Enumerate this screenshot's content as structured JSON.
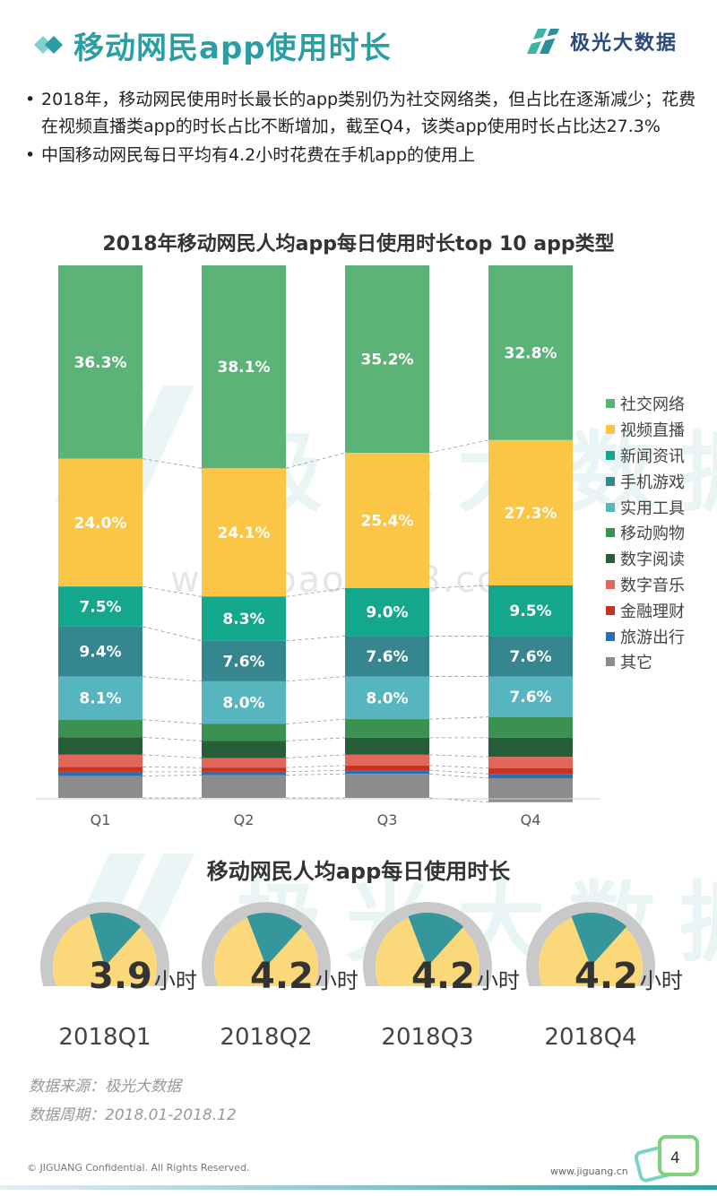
{
  "header": {
    "title": "移动网民app使用时长",
    "brand": "极光大数据"
  },
  "bullets": [
    "2018年，移动网民使用时长最长的app类别仍为社交网络类，但占比在逐渐减少；花费在视频直播类app的时长占比不断增加，截至Q4，该类app使用时长占比达27.3%",
    "中国移动网民每日平均有4.2小时花费在手机app的使用上"
  ],
  "watermark": {
    "brand": "极光大数据",
    "url": "www.baogao8.com"
  },
  "chart_data": [
    {
      "type": "bar",
      "stacked": true,
      "title": "2018年移动网民人均app每日使用时长top 10 app类型",
      "categories": [
        "Q1",
        "Q2",
        "Q3",
        "Q4"
      ],
      "ylim": [
        0,
        100
      ],
      "legend_position": "right",
      "series": [
        {
          "name": "社交网络",
          "color": "#5cb377",
          "values": [
            36.3,
            38.1,
            35.2,
            32.8
          ],
          "labels": [
            "36.3%",
            "38.1%",
            "35.2%",
            "32.8%"
          ]
        },
        {
          "name": "视频直播",
          "color": "#fbc545",
          "values": [
            24.0,
            24.1,
            25.4,
            27.3
          ],
          "labels": [
            "24.0%",
            "24.1%",
            "25.4%",
            "27.3%"
          ]
        },
        {
          "name": "新闻资讯",
          "color": "#13a88c",
          "values": [
            7.5,
            8.3,
            9.0,
            9.5
          ],
          "labels": [
            "7.5%",
            "8.3%",
            "9.0%",
            "9.5%"
          ]
        },
        {
          "name": "手机游戏",
          "color": "#35868e",
          "values": [
            9.4,
            7.6,
            7.6,
            7.6
          ],
          "labels": [
            "9.4%",
            "7.6%",
            "7.6%",
            "7.6%"
          ]
        },
        {
          "name": "实用工具",
          "color": "#56b5be",
          "values": [
            8.1,
            8.0,
            8.0,
            7.6
          ],
          "labels": [
            "8.1%",
            "8.0%",
            "8.0%",
            "7.6%"
          ]
        },
        {
          "name": "移动购物",
          "color": "#3a9150",
          "values": [
            3.3,
            3.2,
            3.5,
            3.9
          ],
          "labels": [
            "",
            "",
            "",
            ""
          ]
        },
        {
          "name": "数字阅读",
          "color": "#265e3a",
          "values": [
            3.3,
            3.2,
            3.2,
            3.6
          ],
          "labels": [
            "",
            "",
            "",
            ""
          ]
        },
        {
          "name": "数字音乐",
          "color": "#e2665a",
          "values": [
            2.3,
            1.8,
            2.0,
            2.1
          ],
          "labels": [
            "",
            "",
            "",
            ""
          ]
        },
        {
          "name": "金融理财",
          "color": "#c8321f",
          "values": [
            0.9,
            0.8,
            0.9,
            1.1
          ],
          "labels": [
            "",
            "",
            "",
            ""
          ]
        },
        {
          "name": "旅游出行",
          "color": "#2a6fb3",
          "values": [
            0.8,
            0.6,
            0.7,
            0.8
          ],
          "labels": [
            "",
            "",
            "",
            ""
          ]
        },
        {
          "name": "其它",
          "color": "#8c8c8c",
          "values": [
            4.1,
            4.3,
            4.5,
            4.5
          ],
          "labels": [
            "",
            "",
            "",
            ""
          ]
        }
      ]
    },
    {
      "type": "pie",
      "title": "移动网民人均app每日使用时长",
      "unit": "小时",
      "items": [
        {
          "label": "2018Q1",
          "value": 3.9,
          "display": "3.9"
        },
        {
          "label": "2018Q2",
          "value": 4.2,
          "display": "4.2"
        },
        {
          "label": "2018Q3",
          "value": 4.2,
          "display": "4.2"
        },
        {
          "label": "2018Q4",
          "value": 4.2,
          "display": "4.2"
        }
      ],
      "colors": {
        "ring": "#c9c9c9",
        "fill": "#fbd97a",
        "slice": "#35979c"
      }
    }
  ],
  "source": {
    "line1": "数据来源：极光大数据",
    "line2": "数据周期：2018.01-2018.12"
  },
  "footer": {
    "copyright": "© JIGUANG Confidential. All Rights Reserved.",
    "site": "www.jiguang.cn",
    "page": "4"
  },
  "colors": {
    "accent": "#2a9ea3",
    "brand": "#2a4a7a"
  }
}
